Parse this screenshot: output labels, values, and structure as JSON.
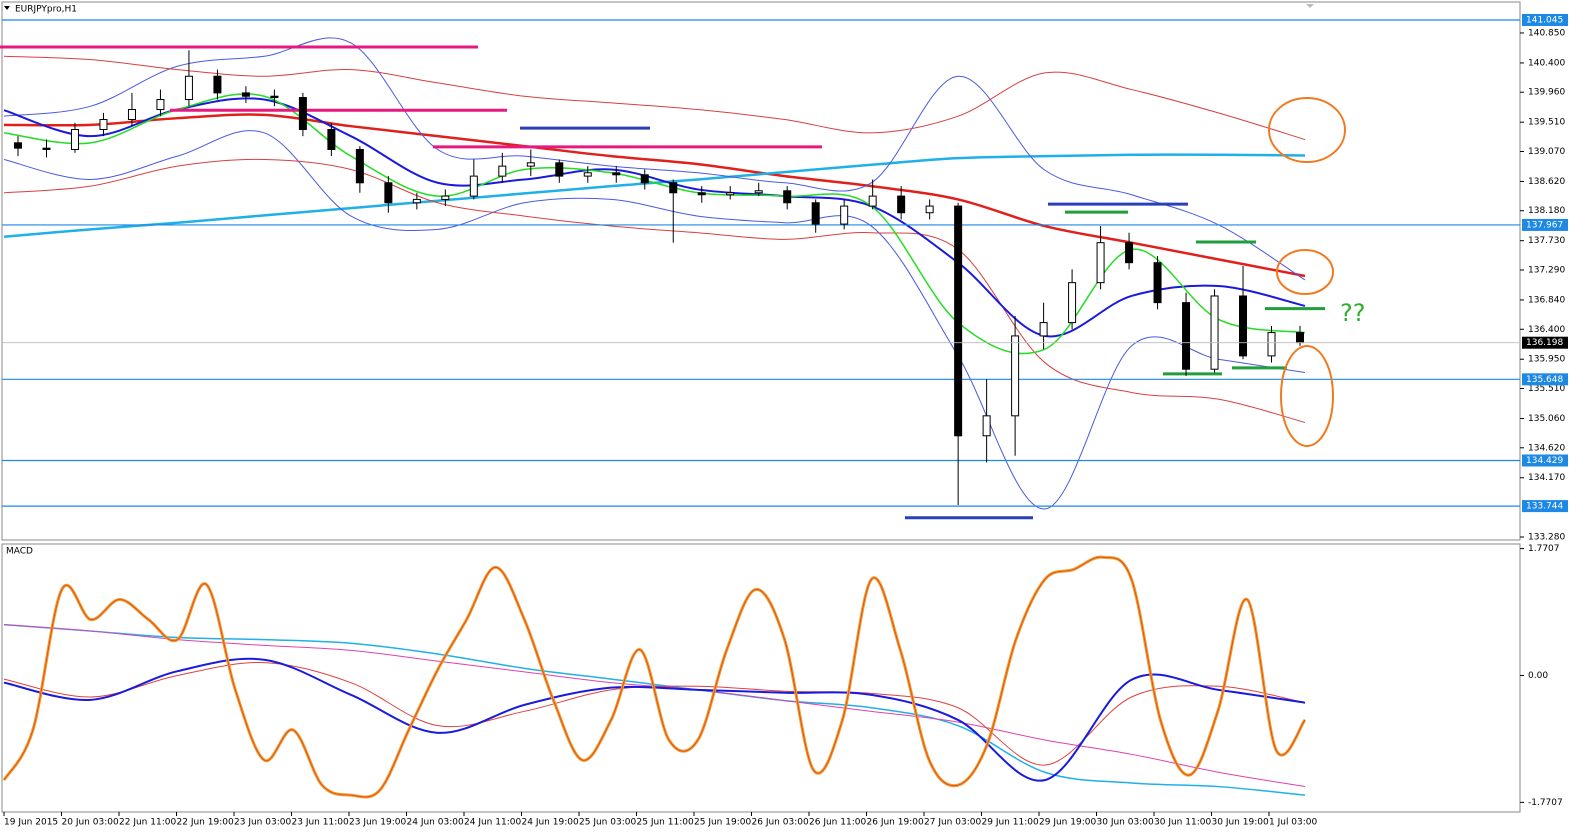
{
  "chart_data": [
    {
      "type": "candlestick",
      "title": "EURJPYpro,H1",
      "categories": [
        "19 Jun 2015",
        "20 Jun 03:00",
        "22 Jun 11:00",
        "22 Jun 19:00",
        "23 Jun 03:00",
        "23 Jun 11:00",
        "23 Jun 19:00",
        "24 Jun 03:00",
        "24 Jun 11:00",
        "24 Jun 19:00",
        "25 Jun 03:00",
        "25 Jun 11:00",
        "25 Jun 19:00",
        "26 Jun 03:00",
        "26 Jun 11:00",
        "26 Jun 19:00",
        "27 Jun 03:00",
        "29 Jun 11:00",
        "29 Jun 19:00",
        "30 Jun 03:00",
        "30 Jun 11:00",
        "30 Jun 19:00",
        "1 Jul 03:00"
      ],
      "open": [
        139.2,
        139.12,
        139.1,
        139.4,
        139.55,
        139.7,
        139.85,
        140.2,
        139.95,
        139.9,
        139.88,
        139.4,
        139.1,
        138.6,
        138.3,
        138.35,
        138.4,
        138.7,
        138.85,
        138.9,
        138.7,
        138.75,
        138.72,
        138.6,
        138.45,
        138.42,
        138.45,
        138.48,
        138.3,
        137.98,
        138.25,
        138.4,
        138.15,
        138.25,
        134.8,
        135.1,
        136.3,
        136.5,
        137.1,
        137.7,
        137.4,
        136.8,
        135.8,
        136.9,
        136.0,
        136.35
      ],
      "high": [
        139.3,
        139.25,
        139.5,
        139.65,
        139.95,
        140.0,
        140.59,
        140.3,
        140.05,
        140.0,
        139.95,
        139.5,
        139.15,
        138.7,
        138.45,
        138.5,
        138.95,
        139.05,
        139.1,
        138.95,
        138.85,
        138.85,
        138.8,
        138.65,
        138.55,
        138.55,
        138.6,
        138.55,
        138.35,
        138.35,
        138.65,
        138.55,
        138.35,
        138.3,
        135.65,
        136.6,
        136.8,
        137.3,
        137.95,
        137.85,
        137.5,
        136.95,
        137.0,
        137.35,
        136.45,
        136.45
      ],
      "low": [
        139.0,
        138.98,
        139.05,
        139.3,
        139.45,
        139.6,
        139.75,
        139.85,
        139.8,
        139.75,
        139.3,
        139.0,
        138.45,
        138.15,
        138.2,
        138.25,
        138.35,
        138.6,
        138.7,
        138.6,
        138.6,
        138.6,
        138.5,
        137.7,
        138.3,
        138.35,
        138.4,
        138.2,
        137.85,
        137.9,
        138.2,
        138.05,
        138.05,
        133.76,
        134.4,
        134.5,
        136.1,
        136.4,
        137.0,
        137.3,
        136.7,
        135.7,
        135.75,
        135.95,
        135.9,
        136.15
      ],
      "close": [
        139.12,
        139.1,
        139.4,
        139.55,
        139.7,
        139.85,
        140.2,
        139.95,
        139.9,
        139.88,
        139.4,
        139.1,
        138.6,
        138.3,
        138.35,
        138.4,
        138.7,
        138.85,
        138.9,
        138.7,
        138.75,
        138.72,
        138.6,
        138.45,
        138.42,
        138.45,
        138.48,
        138.3,
        137.98,
        138.25,
        138.4,
        138.15,
        138.25,
        134.8,
        135.1,
        136.3,
        136.5,
        137.1,
        137.7,
        137.4,
        136.8,
        135.8,
        136.9,
        136.0,
        136.35,
        136.2
      ],
      "ylim": [
        133.235,
        141.315
      ],
      "yticks": [
        {
          "value": 140.85,
          "label": "140.850"
        },
        {
          "value": 140.4,
          "label": "140.400"
        },
        {
          "value": 139.96,
          "label": "139.960"
        },
        {
          "value": 139.51,
          "label": "139.510"
        },
        {
          "value": 139.07,
          "label": "139.070"
        },
        {
          "value": 138.62,
          "label": "138.620"
        },
        {
          "value": 138.18,
          "label": "138.180"
        },
        {
          "value": 137.73,
          "label": "137.730"
        },
        {
          "value": 137.29,
          "label": "137.290"
        },
        {
          "value": 136.84,
          "label": "136.840"
        },
        {
          "value": 136.4,
          "label": "136.400"
        },
        {
          "value": 135.95,
          "label": "135.950"
        },
        {
          "value": 135.51,
          "label": "135.510"
        },
        {
          "value": 135.06,
          "label": "135.060"
        },
        {
          "value": 134.62,
          "label": "134.620"
        },
        {
          "value": 134.17,
          "label": "134.170"
        },
        {
          "value": 133.28,
          "label": "133.280"
        }
      ],
      "levels": [
        141.045,
        137.967,
        135.648,
        134.429,
        133.744
      ],
      "level_color": "#1e88e5",
      "current_price": 136.198,
      "lines": [
        {
          "color": "#e0201b",
          "width": 2.5,
          "values": [
            139.47,
            139.47,
            139.57,
            139.62,
            139.45,
            139.3,
            139.15,
            139.0,
            138.88,
            138.7,
            138.55,
            138.35,
            137.95,
            137.7,
            137.45,
            137.2
          ]
        },
        {
          "color": "#20b0e8",
          "width": 2.5,
          "values": [
            137.79,
            137.9,
            138.0,
            138.11,
            138.22,
            138.33,
            138.44,
            138.55,
            138.65,
            138.76,
            138.87,
            138.97,
            139.0,
            139.02,
            139.02,
            139.01
          ]
        },
        {
          "color": "#4a5ae0",
          "width": 1,
          "values": [
            139.6,
            139.75,
            140.35,
            140.5,
            140.7,
            139.1,
            139.0,
            138.85,
            138.75,
            138.6,
            138.6,
            140.2,
            138.79,
            138.42,
            137.97,
            137.14
          ]
        },
        {
          "color": "#4a5ae0",
          "width": 1,
          "values": [
            138.95,
            138.65,
            139.0,
            139.35,
            138.1,
            137.9,
            138.3,
            138.35,
            138.1,
            138.0,
            137.95,
            136.0,
            133.7,
            136.15,
            135.95,
            135.75
          ]
        },
        {
          "color": "#d84040",
          "width": 1,
          "values": [
            140.5,
            140.45,
            140.3,
            140.2,
            140.3,
            140.1,
            139.9,
            139.8,
            139.7,
            139.55,
            139.35,
            139.6,
            140.25,
            140.0,
            139.65,
            139.25
          ]
        },
        {
          "color": "#d84040",
          "width": 1,
          "values": [
            138.45,
            138.55,
            138.85,
            138.95,
            138.8,
            138.3,
            138.1,
            137.95,
            137.85,
            137.75,
            137.85,
            137.6,
            135.9,
            135.45,
            135.35,
            135.0
          ]
        },
        {
          "color": "#1a1adc",
          "width": 2,
          "values": [
            139.69,
            139.3,
            139.7,
            139.85,
            139.3,
            138.6,
            138.65,
            138.8,
            138.5,
            138.4,
            138.25,
            137.4,
            136.3,
            136.9,
            137.05,
            136.75
          ]
        },
        {
          "color": "#22dd22",
          "width": 1.5,
          "values": [
            139.35,
            139.2,
            139.7,
            139.9,
            139.0,
            138.4,
            138.8,
            138.75,
            138.45,
            138.4,
            138.25,
            136.5,
            136.1,
            137.6,
            136.55,
            136.35
          ]
        }
      ],
      "segments": [
        {
          "value": 140.64,
          "color": "#e6197e"
        },
        {
          "value": 139.69,
          "color": "#e6197e"
        },
        {
          "value": 139.14,
          "color": "#e6197e"
        },
        {
          "value": 139.42,
          "color": "#2b3fb8"
        },
        {
          "value": 138.28,
          "color": "#2b3fb8"
        },
        {
          "value": 133.57,
          "color": "#2b3fb8"
        },
        {
          "value": 138.16,
          "color": "#1f9e3a"
        },
        {
          "value": 137.71,
          "color": "#1f9e3a"
        },
        {
          "value": 136.71,
          "color": "#1f9e3a"
        },
        {
          "value": 135.73,
          "color": "#1f9e3a"
        },
        {
          "value": 135.82,
          "color": "#1f9e3a"
        }
      ],
      "annotation": "??"
    },
    {
      "type": "macd",
      "title": "MACD",
      "ylim": [
        -1.905,
        1.835
      ],
      "yticks": [
        1.7707,
        {
          "value": 0,
          "label": "0.00"
        },
        -1.7707
      ],
      "series": [
        {
          "color": "#20b0e8",
          "width": 1.5,
          "values": [
            0.71,
            0.62,
            0.53,
            0.5,
            0.45,
            0.3,
            0.1,
            -0.05,
            -0.2,
            -0.35,
            -0.45,
            -0.7,
            -1.35,
            -1.5,
            -1.55,
            -1.67
          ]
        },
        {
          "color": "#e040b0",
          "width": 1,
          "values": [
            0.71,
            0.62,
            0.5,
            0.42,
            0.35,
            0.2,
            0.05,
            -0.1,
            -0.2,
            -0.35,
            -0.5,
            -0.65,
            -0.9,
            -1.1,
            -1.35,
            -1.55
          ]
        },
        {
          "color": "#e04040",
          "width": 1,
          "values": [
            -0.05,
            -0.3,
            0.0,
            0.18,
            -0.1,
            -0.7,
            -0.5,
            -0.2,
            -0.15,
            -0.22,
            -0.25,
            -0.45,
            -1.25,
            -0.3,
            -0.15,
            -0.38
          ]
        },
        {
          "color": "#1a1adc",
          "width": 2,
          "values": [
            -0.1,
            -0.34,
            0.06,
            0.22,
            -0.27,
            -0.8,
            -0.41,
            -0.17,
            -0.2,
            -0.24,
            -0.27,
            -0.62,
            -1.46,
            -0.06,
            -0.2,
            -0.38
          ]
        },
        {
          "color": "#f39a2a",
          "width": 3,
          "values": [
            -1.46,
            -0.76,
            1.2,
            0.78,
            1.06,
            0.78,
            0.5,
            1.27,
            -0.2,
            -1.18,
            -0.76,
            -1.53,
            -1.67,
            -1.6,
            -0.76,
            0.08,
            0.78,
            1.51,
            0.78,
            -0.34,
            -1.18,
            -0.62,
            0.36,
            -0.9,
            -0.9,
            0.36,
            1.2,
            0.5,
            -1.32,
            -0.62,
            1.34,
            0.36,
            -1.18,
            -1.53,
            -0.97,
            0.5,
            1.34,
            1.48,
            1.65,
            1.34,
            -0.62,
            -1.39,
            -0.48,
            1.06,
            -1.04,
            -0.62
          ]
        }
      ]
    }
  ]
}
